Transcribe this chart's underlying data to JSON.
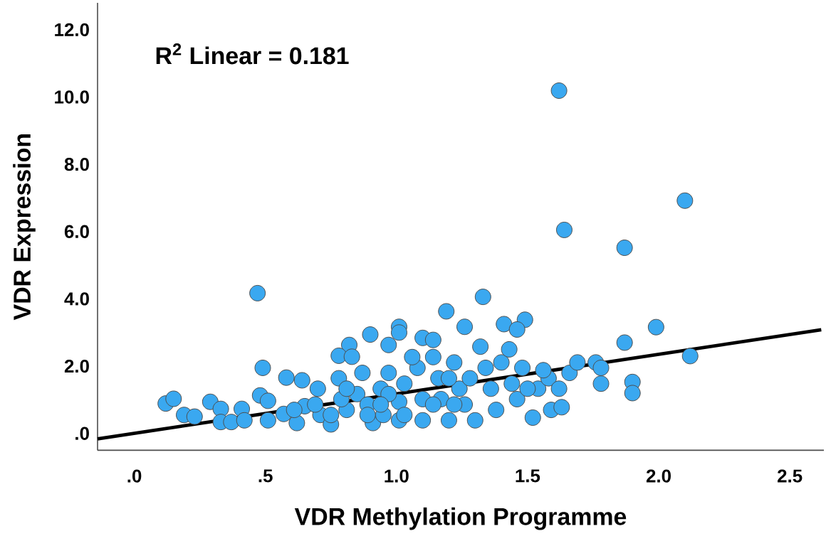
{
  "chart_data": {
    "type": "scatter",
    "xlabel": "VDR Methylation Programme",
    "ylabel": "VDR Expression",
    "annotations": [
      "R$^{2}$ Linear = 0.181"
    ],
    "xlim": [
      -0.14,
      2.63
    ],
    "ylim": [
      -0.5,
      12.8
    ],
    "xticks": [
      {
        "value": 0,
        "label": ".0"
      },
      {
        "value": 0.5,
        "label": ".5"
      },
      {
        "value": 1,
        "label": "1.0"
      },
      {
        "value": 1.5,
        "label": "1.5"
      },
      {
        "value": 2,
        "label": "2.0"
      },
      {
        "value": 2.5,
        "label": "2.5"
      }
    ],
    "yticks": [
      {
        "value": 0,
        "label": ".0"
      },
      {
        "value": 2,
        "label": "2.0"
      },
      {
        "value": 4,
        "label": "4.0"
      },
      {
        "value": 6,
        "label": "6.0"
      },
      {
        "value": 8,
        "label": "8.0"
      },
      {
        "value": 10,
        "label": "10.0"
      },
      {
        "value": 12,
        "label": "12.0"
      }
    ],
    "marker": "circle",
    "series": [
      {
        "color": "#3aa8f0",
        "x": [
          1.62,
          1.64,
          2.1,
          1.87,
          0.47,
          1.33,
          1.19,
          1.99,
          1.87,
          2.12,
          1.78,
          1.9,
          1.9,
          1.49,
          1.41,
          1.46,
          1.26,
          1.01,
          1.01,
          0.9,
          0.82,
          0.78,
          0.83,
          0.97,
          1.1,
          1.14,
          0.49,
          0.58,
          0.64,
          0.7,
          0.12,
          0.15,
          0.29,
          0.33,
          0.41,
          0.19,
          0.23,
          0.33,
          0.37,
          0.42,
          0.48,
          0.51,
          0.51,
          0.57,
          0.62,
          0.65,
          0.71,
          0.75,
          0.75,
          0.81,
          0.79,
          0.85,
          0.89,
          0.91,
          0.94,
          0.97,
          0.95,
          1.01,
          1.01,
          1.03,
          1.08,
          1.1,
          1.1,
          1.14,
          1.16,
          1.17,
          1.2,
          1.22,
          1.24,
          1.26,
          1.3,
          1.32,
          1.34,
          1.36,
          1.38,
          1.4,
          1.43,
          1.44,
          1.46,
          1.48,
          1.52,
          1.54,
          1.58,
          1.59,
          1.63,
          1.66,
          1.69,
          1.76,
          1.78,
          1.62,
          1.5,
          1.56,
          0.87,
          0.78,
          0.81,
          0.89,
          1.03,
          1.14,
          1.22,
          1.28,
          1.06,
          1.2,
          0.61,
          0.69,
          0.97,
          0.94
        ],
        "values": [
          10.19,
          6.05,
          6.92,
          5.52,
          4.17,
          4.06,
          3.63,
          3.16,
          2.7,
          2.3,
          1.48,
          1.53,
          1.2,
          3.38,
          3.25,
          3.09,
          3.17,
          3.17,
          3.0,
          2.94,
          2.63,
          2.31,
          2.28,
          2.63,
          2.84,
          2.78,
          1.95,
          1.66,
          1.58,
          1.33,
          0.89,
          1.03,
          0.94,
          0.73,
          0.73,
          0.55,
          0.5,
          0.34,
          0.34,
          0.39,
          1.13,
          0.39,
          0.97,
          0.58,
          0.31,
          0.81,
          0.55,
          0.27,
          0.55,
          0.7,
          1.02,
          1.17,
          0.86,
          0.31,
          1.33,
          1.8,
          0.55,
          0.39,
          0.94,
          1.48,
          1.95,
          1.02,
          0.39,
          2.27,
          1.64,
          1.02,
          0.39,
          2.11,
          1.33,
          0.86,
          0.39,
          2.58,
          1.95,
          1.33,
          0.7,
          2.11,
          2.5,
          1.48,
          1.02,
          1.95,
          0.47,
          1.33,
          1.64,
          0.7,
          0.78,
          1.8,
          2.11,
          2.11,
          1.95,
          1.33,
          1.33,
          1.88,
          1.8,
          1.64,
          1.33,
          0.55,
          0.55,
          0.86,
          0.86,
          1.64,
          2.27,
          1.64,
          0.7,
          0.86,
          1.17,
          0.86
        ]
      },
      {
        "type": "line",
        "marker": "none",
        "color": "#000000",
        "line_style": "solid",
        "x": [
          -0.14,
          2.62
        ],
        "values": [
          -0.16,
          3.08
        ]
      }
    ]
  }
}
